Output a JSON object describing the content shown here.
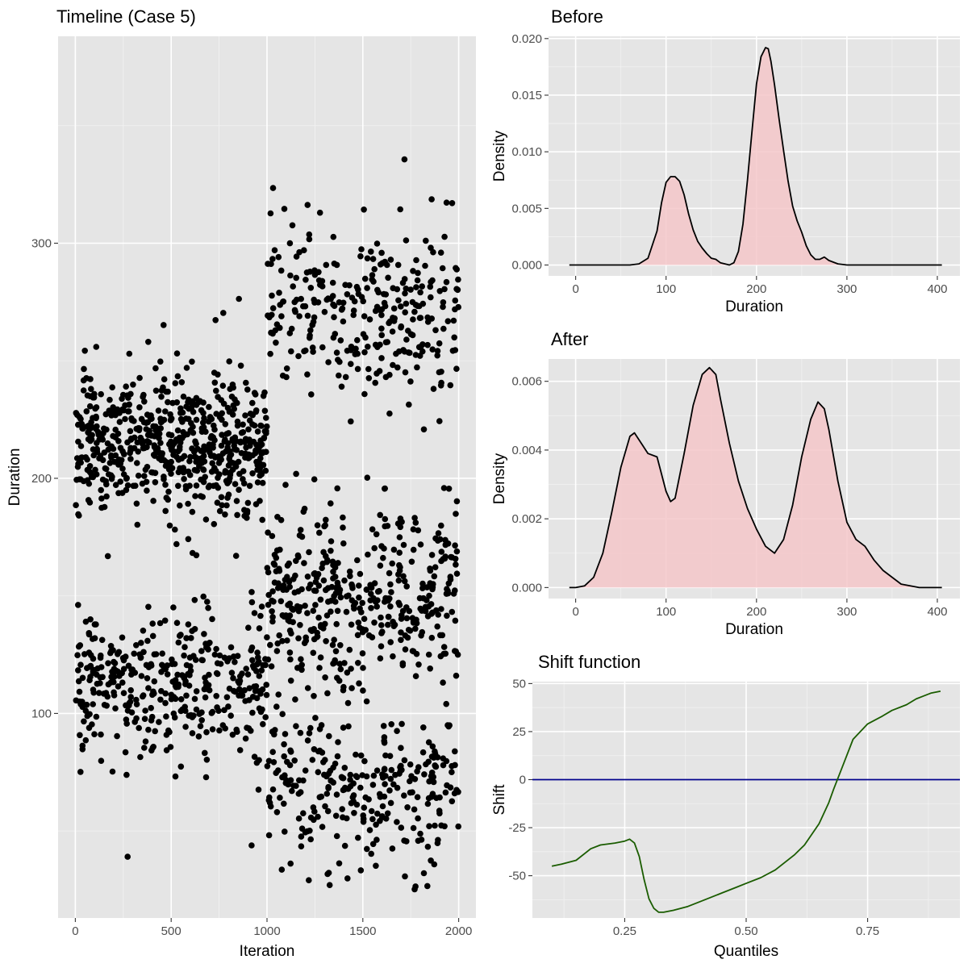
{
  "chart_data": [
    {
      "id": "timeline",
      "type": "scatter",
      "title": "Timeline (Case 5)",
      "xlabel": "Iteration",
      "ylabel": "Duration",
      "xlim": [
        -90,
        2090
      ],
      "ylim": [
        13,
        388
      ],
      "xticks": [
        0,
        500,
        1000,
        1500,
        2000
      ],
      "xtick_labels": [
        "0",
        "500",
        "1000",
        "1500",
        "2000"
      ],
      "yticks": [
        100,
        200,
        300
      ],
      "ytick_labels": [
        "100",
        "200",
        "300"
      ],
      "point_color": "#000000",
      "segments": [
        {
          "name": "before",
          "x_range": [
            1,
            1000
          ],
          "groups": [
            {
              "center": 214,
              "sd": 14,
              "count": 620
            },
            {
              "center": 112,
              "sd": 16,
              "count": 380
            }
          ]
        },
        {
          "name": "after",
          "x_range": [
            1001,
            2000
          ],
          "groups": [
            {
              "center": 68,
              "sd": 16,
              "count": 280
            },
            {
              "center": 148,
              "sd": 19,
              "count": 420
            },
            {
              "center": 270,
              "sd": 18,
              "count": 300
            }
          ]
        }
      ]
    },
    {
      "id": "before",
      "type": "area",
      "title": "Before",
      "xlabel": "Duration",
      "ylabel": "Density",
      "xlim": [
        -30,
        425
      ],
      "ylim": [
        -0.00096,
        0.0202
      ],
      "xticks": [
        0,
        100,
        200,
        300,
        400
      ],
      "xtick_labels": [
        "0",
        "100",
        "200",
        "300",
        "400"
      ],
      "yticks": [
        0,
        0.005,
        0.01,
        0.015,
        0.02
      ],
      "ytick_labels": [
        "0.000",
        "0.005",
        "0.010",
        "0.015",
        "0.020"
      ],
      "fill_color": "#f4c7c9",
      "line_color": "#000000",
      "x": [
        -7,
        60,
        70,
        80,
        90,
        95,
        100,
        105,
        110,
        115,
        120,
        125,
        130,
        135,
        140,
        145,
        150,
        155,
        160,
        165,
        170,
        175,
        180,
        185,
        190,
        195,
        200,
        205,
        210,
        213,
        216,
        220,
        225,
        230,
        235,
        240,
        245,
        250,
        255,
        260,
        265,
        270,
        275,
        280,
        290,
        300,
        310,
        405
      ],
      "y": [
        0,
        0,
        0.0001,
        0.0006,
        0.003,
        0.0055,
        0.0073,
        0.0078,
        0.0078,
        0.0074,
        0.0062,
        0.0045,
        0.0031,
        0.0021,
        0.0015,
        0.001,
        0.0006,
        0.0005,
        0.0002,
        0.0001,
        0,
        0.0002,
        0.0012,
        0.0036,
        0.0075,
        0.0118,
        0.016,
        0.0184,
        0.0192,
        0.0191,
        0.018,
        0.0159,
        0.0129,
        0.0101,
        0.0074,
        0.0052,
        0.0039,
        0.0029,
        0.0017,
        0.0009,
        0.0005,
        0.0005,
        0.0007,
        0.0004,
        0.0001,
        0,
        0,
        0
      ]
    },
    {
      "id": "after",
      "type": "area",
      "title": "After",
      "xlabel": "Duration",
      "ylabel": "Density",
      "xlim": [
        -30,
        425
      ],
      "ylim": [
        -0.00032,
        0.00665
      ],
      "xticks": [
        0,
        100,
        200,
        300,
        400
      ],
      "xtick_labels": [
        "0",
        "100",
        "200",
        "300",
        "400"
      ],
      "yticks": [
        0,
        0.002,
        0.004,
        0.006
      ],
      "ytick_labels": [
        "0.000",
        "0.002",
        "0.004",
        "0.006"
      ],
      "fill_color": "#f4c7c9",
      "line_color": "#000000",
      "x": [
        -7,
        0,
        10,
        20,
        30,
        40,
        50,
        60,
        65,
        70,
        80,
        90,
        100,
        105,
        110,
        120,
        130,
        140,
        148,
        155,
        160,
        170,
        180,
        190,
        200,
        210,
        220,
        230,
        240,
        250,
        260,
        268,
        275,
        280,
        290,
        300,
        310,
        320,
        330,
        340,
        350,
        360,
        370,
        380,
        390,
        405
      ],
      "y": [
        0,
        0,
        5e-05,
        0.0003,
        0.001,
        0.0022,
        0.0035,
        0.0044,
        0.0045,
        0.0043,
        0.0039,
        0.0038,
        0.0028,
        0.0025,
        0.0026,
        0.0039,
        0.0053,
        0.0062,
        0.0064,
        0.0062,
        0.0055,
        0.0042,
        0.0031,
        0.0023,
        0.0017,
        0.0012,
        0.001,
        0.0014,
        0.0024,
        0.0038,
        0.0049,
        0.0054,
        0.0052,
        0.0046,
        0.0031,
        0.0019,
        0.0014,
        0.0012,
        0.0008,
        0.0005,
        0.0003,
        0.0001,
        5e-05,
        0,
        0,
        0
      ]
    },
    {
      "id": "shift",
      "type": "line",
      "title": "Shift function",
      "xlabel": "Quantiles",
      "ylabel": "Shift",
      "xlim": [
        0.06,
        0.94
      ],
      "ylim": [
        -72,
        51
      ],
      "xticks": [
        0.25,
        0.5,
        0.75
      ],
      "xtick_labels": [
        "0.25",
        "0.50",
        "0.75"
      ],
      "yticks": [
        -50,
        -25,
        0,
        25,
        50
      ],
      "ytick_labels": [
        "-50",
        "-25",
        "0",
        "25",
        "50"
      ],
      "line_color": "#1a5c00",
      "hline": {
        "y": 0,
        "color": "#00008b"
      },
      "x": [
        0.1,
        0.12,
        0.15,
        0.18,
        0.2,
        0.23,
        0.25,
        0.26,
        0.27,
        0.28,
        0.29,
        0.3,
        0.31,
        0.32,
        0.33,
        0.35,
        0.38,
        0.4,
        0.42,
        0.45,
        0.48,
        0.5,
        0.53,
        0.56,
        0.6,
        0.62,
        0.65,
        0.67,
        0.68,
        0.7,
        0.72,
        0.75,
        0.78,
        0.8,
        0.83,
        0.85,
        0.88,
        0.9
      ],
      "y": [
        -45,
        -44,
        -42,
        -36,
        -34,
        -33,
        -32,
        -31,
        -33,
        -40,
        -52,
        -62,
        -67,
        -69,
        -69,
        -68,
        -66,
        -64,
        -62,
        -59,
        -56,
        -54,
        -51,
        -47,
        -39,
        -34,
        -23,
        -12,
        -5,
        8,
        21,
        29,
        33,
        36,
        39,
        42,
        45,
        46
      ]
    }
  ]
}
